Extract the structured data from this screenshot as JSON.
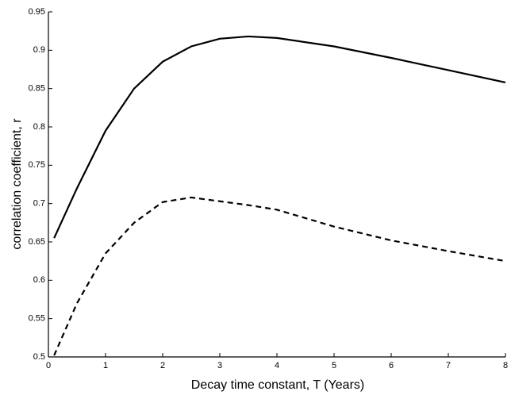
{
  "chart_data": {
    "type": "line",
    "x_label": "Decay time constant, T (Years)",
    "y_label": "correlation coefficient, r",
    "x": [
      0.1,
      0.5,
      1,
      1.5,
      2,
      2.5,
      3,
      3.5,
      4,
      5,
      6,
      7,
      8
    ],
    "series": [
      {
        "color": "#000000",
        "dash": "solid",
        "values": [
          0.655,
          0.72,
          0.795,
          0.85,
          0.885,
          0.905,
          0.915,
          0.918,
          0.916,
          0.905,
          0.89,
          0.874,
          0.858
        ]
      },
      {
        "color": "#000000",
        "dash": "dashed",
        "values": [
          0.502,
          0.57,
          0.635,
          0.675,
          0.702,
          0.708,
          0.703,
          0.698,
          0.692,
          0.67,
          0.652,
          0.638,
          0.625
        ]
      }
    ],
    "xlim": [
      0,
      8
    ],
    "xticks": [
      0,
      1,
      2,
      3,
      4,
      5,
      6,
      7,
      8
    ],
    "ylim": [
      0.5,
      0.95
    ],
    "yticks": [
      0.5,
      0.55,
      0.6,
      0.65,
      0.7,
      0.75,
      0.8,
      0.85,
      0.9,
      0.95
    ],
    "grid": false
  }
}
